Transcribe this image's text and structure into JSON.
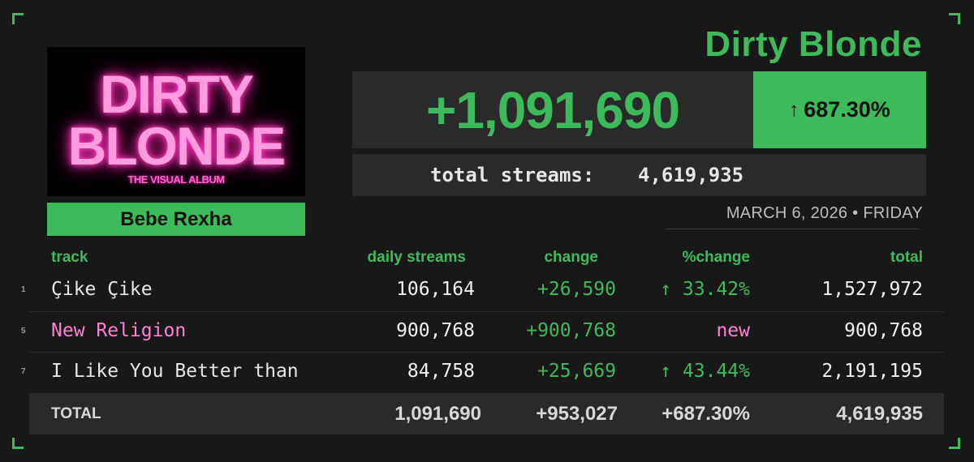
{
  "album": {
    "title": "Dirty Blonde",
    "artist": "Bebe Rexha",
    "cover_line1": "DIRTY",
    "cover_line2": "BLONDE",
    "cover_subtitle": "THE VISUAL ALBUM"
  },
  "summary": {
    "daily_change": "+1,091,690",
    "pct_change": "687.30%",
    "pct_arrow": "↑",
    "total_label": "total streams:",
    "total_value": "4,619,935",
    "date": "MARCH 6, 2026 • FRIDAY"
  },
  "table": {
    "headers": {
      "track": "track",
      "daily": "daily streams",
      "change": "change",
      "pchange": "%change",
      "total": "total"
    },
    "rows": [
      {
        "rank": "1",
        "track": "Çike Çike",
        "daily": "106,164",
        "change": "+26,590",
        "pchange": "↑ 33.42%",
        "total": "1,527,972"
      },
      {
        "rank": "5",
        "track": "New Religion",
        "daily": "900,768",
        "change": "+900,768",
        "pchange": "new",
        "total": "900,768"
      },
      {
        "rank": "7",
        "track": "I Like You Better than",
        "daily": "84,758",
        "change": "+25,669",
        "pchange": "↑ 43.44%",
        "total": "2,191,195"
      }
    ],
    "totals": {
      "label": "TOTAL",
      "daily": "1,091,690",
      "change": "+953,027",
      "pchange": "+687.30%",
      "total": "4,619,935"
    }
  },
  "colors": {
    "accent_green": "#3dbb5a",
    "new_pink": "#ff7fd6",
    "background": "#181818",
    "panel": "#2a2a2a"
  }
}
